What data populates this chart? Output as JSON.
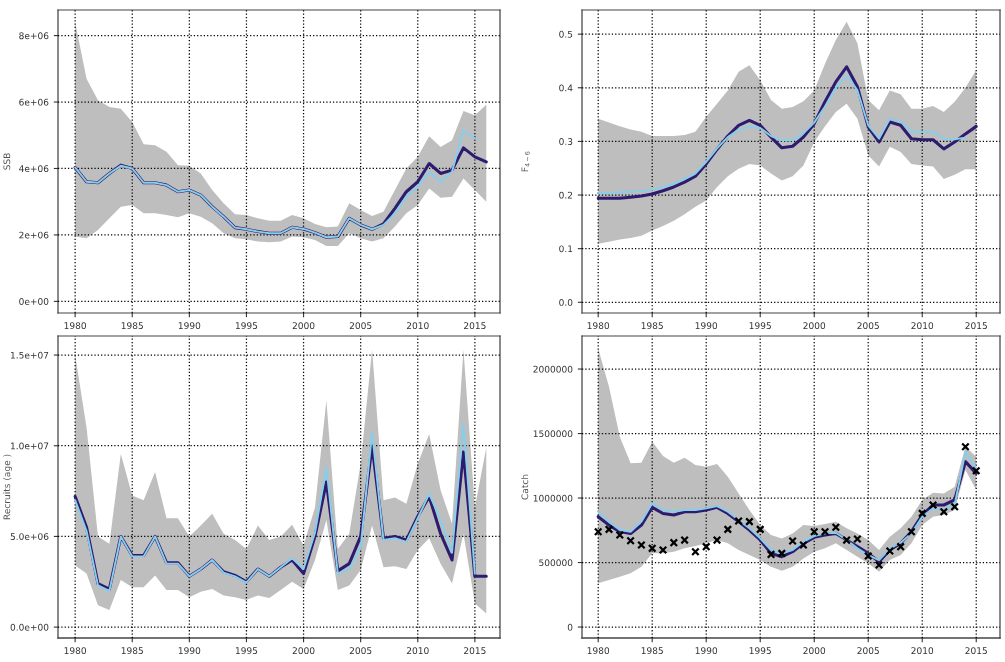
{
  "chart_data": [
    {
      "type": "line",
      "ylabel": "SSB",
      "xlim": [
        1978.5,
        2017.2
      ],
      "xticks": [
        1980,
        1985,
        1990,
        1995,
        2000,
        2005,
        2010,
        2015
      ],
      "ylim": [
        -350000,
        8770000
      ],
      "yticks": [
        {
          "value": 0,
          "label": "0e+00"
        },
        {
          "value": 2000000,
          "label": "2e+06"
        },
        {
          "value": 4000000,
          "label": "4e+06"
        },
        {
          "value": 6000000,
          "label": "6e+06"
        },
        {
          "value": 8000000,
          "label": "8e+06"
        }
      ],
      "grid": true,
      "line_style": "solid",
      "x": [
        1980,
        1981,
        1982,
        1983,
        1984,
        1985,
        1986,
        1987,
        1988,
        1989,
        1990,
        1991,
        1992,
        1993,
        1994,
        1995,
        1996,
        1997,
        1998,
        1999,
        2000,
        2001,
        2002,
        2003,
        2004,
        2005,
        2006,
        2007,
        2008,
        2009,
        2010,
        2011,
        2012,
        2013,
        2014,
        2015,
        2016
      ],
      "series": [
        {
          "color": "#2e1a6e",
          "values": [
            4030000,
            3600000,
            3570000,
            3850000,
            4100000,
            4000000,
            3570000,
            3570000,
            3500000,
            3300000,
            3350000,
            3200000,
            2850000,
            2550000,
            2220000,
            2170000,
            2100000,
            2050000,
            2050000,
            2230000,
            2180000,
            2070000,
            1930000,
            1950000,
            2500000,
            2300000,
            2170000,
            2330000,
            2800000,
            3300000,
            3600000,
            4150000,
            3850000,
            3950000,
            4620000,
            4350000,
            4200000
          ],
          "lower": [
            1950000,
            1900000,
            2150000,
            2500000,
            2850000,
            2900000,
            2650000,
            2650000,
            2600000,
            2530000,
            2650000,
            2550000,
            2350000,
            2050000,
            1900000,
            1870000,
            1800000,
            1780000,
            1800000,
            1950000,
            1930000,
            1850000,
            1670000,
            1670000,
            2050000,
            1900000,
            1800000,
            1900000,
            2250000,
            2650000,
            2900000,
            3400000,
            3120000,
            3150000,
            3700000,
            3350000,
            3000000
          ],
          "upper": [
            8400000,
            6700000,
            6050000,
            5850000,
            5800000,
            5400000,
            4730000,
            4700000,
            4500000,
            4100000,
            4080000,
            3850000,
            3350000,
            2950000,
            2620000,
            2600000,
            2500000,
            2430000,
            2430000,
            2600000,
            2500000,
            2330000,
            2230000,
            2250000,
            2950000,
            2750000,
            2570000,
            2700000,
            3350000,
            4000000,
            4350000,
            4970000,
            4650000,
            4850000,
            5730000,
            5600000,
            5920000
          ]
        },
        {
          "color": "#87ceeb",
          "values": [
            4030000,
            3600000,
            3570000,
            3850000,
            4080000,
            4000000,
            3570000,
            3570000,
            3500000,
            3300000,
            3350000,
            3200000,
            2850000,
            2550000,
            2220000,
            2170000,
            2100000,
            2050000,
            2050000,
            2230000,
            2180000,
            2070000,
            1930000,
            1950000,
            2500000,
            2300000,
            2170000,
            2300000,
            2650000,
            3150000,
            3450000,
            3900000,
            3600000,
            3900000,
            5150000,
            4900000,
            null
          ]
        }
      ]
    },
    {
      "type": "line",
      "ylabel": "F$_{4−6}$",
      "xlim": [
        1978.5,
        2017.2
      ],
      "xticks": [
        1980,
        1985,
        1990,
        1995,
        2000,
        2005,
        2010,
        2015
      ],
      "ylim": [
        -0.02,
        0.545
      ],
      "yticks": [
        {
          "value": 0,
          "label": "0.0"
        },
        0.1,
        0.2,
        0.3,
        0.4,
        0.5
      ],
      "grid": true,
      "line_style": "solid",
      "x": [
        1980,
        1981,
        1982,
        1983,
        1984,
        1985,
        1986,
        1987,
        1988,
        1989,
        1990,
        1991,
        1992,
        1993,
        1994,
        1995,
        1996,
        1997,
        1998,
        1999,
        2000,
        2001,
        2002,
        2003,
        2004,
        2005,
        2006,
        2007,
        2008,
        2009,
        2010,
        2011,
        2012,
        2013,
        2014,
        2015
      ],
      "series": [
        {
          "color": "#2e1a6e",
          "values": [
            0.194,
            0.194,
            0.194,
            0.196,
            0.198,
            0.202,
            0.208,
            0.215,
            0.224,
            0.235,
            0.258,
            0.285,
            0.31,
            0.33,
            0.339,
            0.33,
            0.308,
            0.288,
            0.291,
            0.308,
            0.333,
            0.374,
            0.411,
            0.439,
            0.402,
            0.327,
            0.299,
            0.336,
            0.33,
            0.305,
            0.303,
            0.303,
            0.286,
            0.299,
            0.314,
            0.328
          ],
          "lower": [
            0.109,
            0.113,
            0.117,
            0.12,
            0.124,
            0.134,
            0.142,
            0.152,
            0.164,
            0.178,
            0.19,
            0.215,
            0.235,
            0.249,
            0.258,
            0.255,
            0.24,
            0.227,
            0.235,
            0.255,
            0.299,
            0.328,
            0.355,
            0.37,
            0.342,
            0.274,
            0.253,
            0.29,
            0.28,
            0.258,
            0.255,
            0.253,
            0.23,
            0.238,
            0.248,
            0.248
          ],
          "upper": [
            0.342,
            0.335,
            0.328,
            0.322,
            0.318,
            0.31,
            0.31,
            0.31,
            0.312,
            0.318,
            0.346,
            0.37,
            0.395,
            0.43,
            0.442,
            0.414,
            0.377,
            0.361,
            0.364,
            0.375,
            0.395,
            0.445,
            0.489,
            0.523,
            0.483,
            0.377,
            0.358,
            0.395,
            0.388,
            0.361,
            0.361,
            0.366,
            0.355,
            0.374,
            0.4,
            0.433
          ]
        },
        {
          "color": "#87ceeb",
          "values": [
            0.204,
            0.204,
            0.205,
            0.206,
            0.207,
            0.21,
            0.215,
            0.221,
            0.23,
            0.24,
            0.262,
            0.287,
            0.308,
            0.322,
            0.327,
            0.325,
            0.31,
            0.302,
            0.302,
            0.315,
            0.335,
            0.365,
            0.4,
            0.423,
            0.395,
            0.33,
            0.305,
            0.342,
            0.338,
            0.318,
            0.318,
            0.318,
            0.305,
            0.304,
            0.307,
            null
          ]
        }
      ]
    },
    {
      "type": "line",
      "ylabel": "Recruits (age )",
      "xlim": [
        1978.5,
        2017.2
      ],
      "xticks": [
        1980,
        1985,
        1990,
        1995,
        2000,
        2005,
        2010,
        2015
      ],
      "ylim": [
        -600000,
        16050000
      ],
      "yticks": [
        {
          "value": 0,
          "label": "0.0e+00"
        },
        {
          "value": 5000000,
          "label": "5.0e+06"
        },
        {
          "value": 10000000,
          "label": "1.0e+07"
        },
        {
          "value": 15000000,
          "label": "1.5e+07"
        }
      ],
      "grid": true,
      "line_style": "solid",
      "x": [
        1980,
        1981,
        1982,
        1983,
        1984,
        1985,
        1986,
        1987,
        1988,
        1989,
        1990,
        1991,
        1992,
        1993,
        1994,
        1995,
        1996,
        1997,
        1998,
        1999,
        2000,
        2001,
        2002,
        2003,
        2004,
        2005,
        2006,
        2007,
        2008,
        2009,
        2010,
        2011,
        2012,
        2013,
        2014,
        2015,
        2016
      ],
      "series": [
        {
          "color": "#2e1a6e",
          "values": [
            7200000,
            5500000,
            2400000,
            2100000,
            5000000,
            3950000,
            3950000,
            5000000,
            3550000,
            3550000,
            2800000,
            3200000,
            3700000,
            3050000,
            2850000,
            2500000,
            3200000,
            2800000,
            3300000,
            3700000,
            2950000,
            5000000,
            8000000,
            3100000,
            3500000,
            5000000,
            10000000,
            4900000,
            5000000,
            4800000,
            6100000,
            7200000,
            5150000,
            3700000,
            9650000,
            2800000,
            2800000
          ],
          "lower": [
            3400000,
            2950000,
            1200000,
            950000,
            2600000,
            2200000,
            2200000,
            2850000,
            2050000,
            2050000,
            1650000,
            1950000,
            2100000,
            1750000,
            1650000,
            1500000,
            1750000,
            1600000,
            2050000,
            2500000,
            2100000,
            3700000,
            5900000,
            2050000,
            2300000,
            3150000,
            5600000,
            3300000,
            3350000,
            3200000,
            4250000,
            4900000,
            3500000,
            2400000,
            5150000,
            1300000,
            750000
          ],
          "upper": [
            15000000,
            11000000,
            5000000,
            4600000,
            9550000,
            7250000,
            7000000,
            8550000,
            6000000,
            6000000,
            5000000,
            5600000,
            6250000,
            5150000,
            4800000,
            4300000,
            5600000,
            4800000,
            5000000,
            5650000,
            4500000,
            6600000,
            12500000,
            4300000,
            5150000,
            9000000,
            15300000,
            7000000,
            7150000,
            6800000,
            9000000,
            10650000,
            7550000,
            5700000,
            15300000,
            6600000,
            9900000
          ]
        },
        {
          "color": "#87ceeb",
          "values": [
            7000000,
            5300000,
            2300000,
            2000000,
            5000000,
            3900000,
            3900000,
            5000000,
            3500000,
            3500000,
            2800000,
            3200000,
            3700000,
            3000000,
            2800000,
            2450000,
            3200000,
            2800000,
            3300000,
            3800000,
            3200000,
            5200000,
            8800000,
            2950000,
            3200000,
            4400000,
            10750000,
            4800000,
            4900000,
            4700000,
            6000000,
            7350000,
            5900000,
            4100000,
            11200000,
            2950000,
            null
          ]
        }
      ]
    },
    {
      "type": "line",
      "ylabel": "Catch",
      "xlim": [
        1978.5,
        2017.2
      ],
      "xticks": [
        1980,
        1985,
        1990,
        1995,
        2000,
        2005,
        2010,
        2015
      ],
      "ylim": [
        -85000,
        2256000
      ],
      "yticks": [
        0,
        500000,
        1000000,
        1500000,
        2000000
      ],
      "grid": true,
      "line_style": "solid",
      "x": [
        1980,
        1981,
        1982,
        1983,
        1984,
        1985,
        1986,
        1987,
        1988,
        1989,
        1990,
        1991,
        1992,
        1993,
        1994,
        1995,
        1996,
        1997,
        1998,
        1999,
        2000,
        2001,
        2002,
        2003,
        2004,
        2005,
        2006,
        2007,
        2008,
        2009,
        2010,
        2011,
        2012,
        2013,
        2014,
        2015
      ],
      "series": [
        {
          "color": "#2e1a6e",
          "values": [
            855000,
            790000,
            740000,
            725000,
            790000,
            928000,
            880000,
            868000,
            894000,
            894000,
            907000,
            928000,
            880000,
            817000,
            752000,
            675000,
            571000,
            545000,
            584000,
            649000,
            695000,
            713000,
            726000,
            675000,
            623000,
            571000,
            506000,
            597000,
            649000,
            739000,
            868000,
            946000,
            946000,
            985000,
            1282000,
            1191000
          ],
          "lower": [
            339000,
            364000,
            390000,
            416000,
            468000,
            571000,
            571000,
            584000,
            610000,
            628000,
            649000,
            675000,
            649000,
            597000,
            558000,
            519000,
            468000,
            437000,
            468000,
            532000,
            584000,
            610000,
            649000,
            597000,
            545000,
            494000,
            429000,
            519000,
            558000,
            649000,
            791000,
            855000,
            868000,
            907000,
            1217000,
            1062000
          ],
          "upper": [
            2160000,
            1863000,
            1475000,
            1269000,
            1274000,
            1437000,
            1326000,
            1274000,
            1313000,
            1256000,
            1243000,
            1264000,
            1165000,
            1036000,
            907000,
            791000,
            713000,
            687000,
            726000,
            791000,
            783000,
            798000,
            817000,
            765000,
            726000,
            675000,
            597000,
            700000,
            765000,
            855000,
            985000,
            1041000,
            1036000,
            1088000,
            1398000,
            1320000
          ]
        },
        {
          "color": "#87ceeb",
          "values": [
            894000,
            817000,
            752000,
            739000,
            817000,
            959000,
            907000,
            894000,
            907000,
            907000,
            920000,
            938000,
            894000,
            830000,
            765000,
            687000,
            597000,
            571000,
            597000,
            662000,
            705000,
            726000,
            731000,
            675000,
            610000,
            558000,
            519000,
            610000,
            654000,
            726000,
            855000,
            920000,
            912000,
            946000,
            1359000,
            1230000
          ]
        },
        {
          "type": "scatter",
          "marker": "cross",
          "color": "#000000",
          "values": [
            739000,
            757000,
            713000,
            669000,
            636000,
            610000,
            597000,
            654000,
            674000,
            584000,
            623000,
            674000,
            757000,
            822000,
            817000,
            757000,
            563000,
            571000,
            667000,
            636000,
            739000,
            739000,
            773000,
            674000,
            682000,
            550000,
            481000,
            589000,
            623000,
            739000,
            881000,
            946000,
            894000,
            933000,
            1398000,
            1212000
          ]
        }
      ]
    }
  ]
}
